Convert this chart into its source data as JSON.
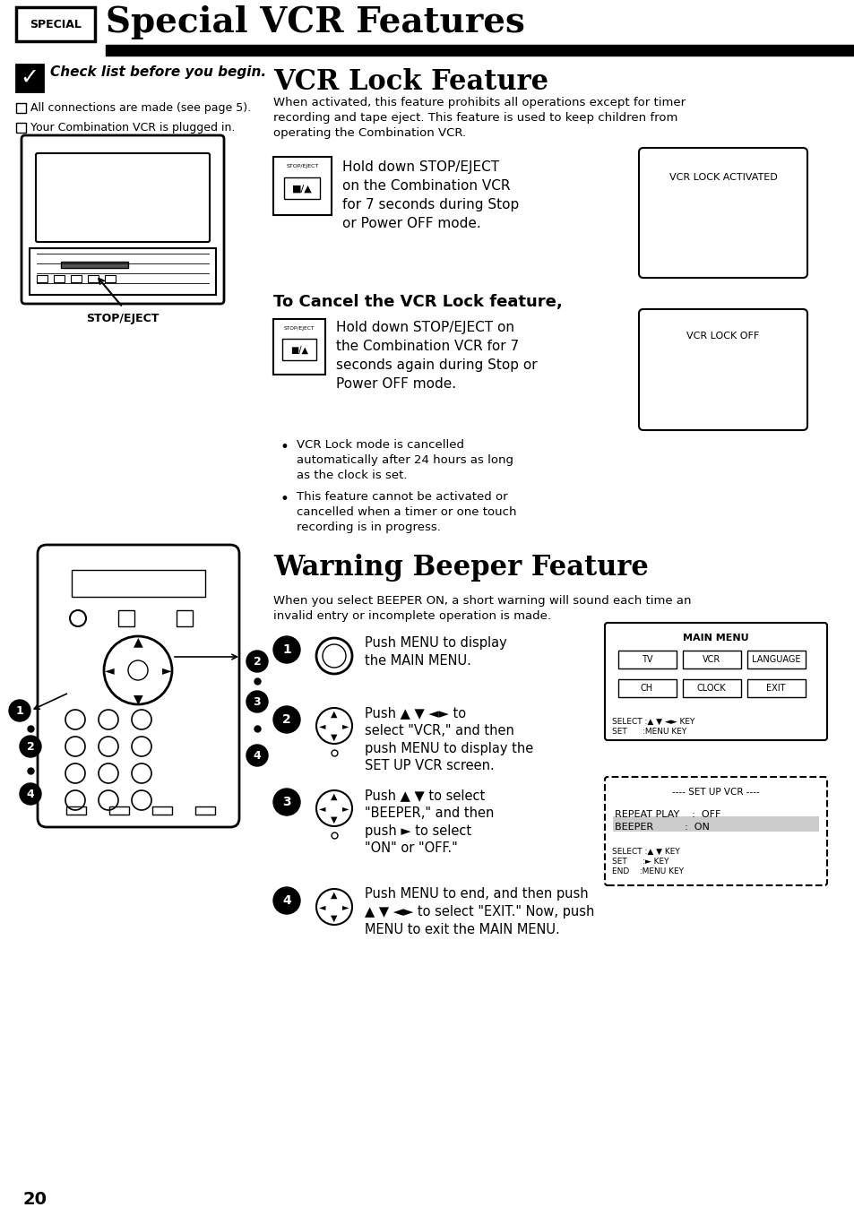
{
  "title": "Special VCR Features",
  "special_label": "SPECIAL",
  "page_number": "20",
  "bg_color": "#ffffff",
  "header_bar_color": "#000000",
  "section1_title": "VCR Lock Feature",
  "section1_intro": "When activated, this feature prohibits all operations except for timer\nrecording and tape eject. This feature is used to keep children from\noperating the Combination VCR.",
  "checklist_title": "Check list before you begin.",
  "checklist_items": [
    "All connections are made (see page 5).",
    "Your Combination VCR is plugged in."
  ],
  "vcr_lock_instruction": "Hold down STOP/EJECT\non the Combination VCR\nfor 7 seconds during Stop\nor Power OFF mode.",
  "vcr_lock_activated": "VCR LOCK ACTIVATED",
  "cancel_title": "To Cancel the VCR Lock feature,",
  "cancel_instruction": "Hold down STOP/EJECT on\nthe Combination VCR for 7\nseconds again during Stop or\nPower OFF mode.",
  "vcr_lock_off": "VCR LOCK OFF",
  "bullet1": "VCR Lock mode is cancelled\nautomatically after 24 hours as long\nas the clock is set.",
  "bullet2": "This feature cannot be activated or\ncancelled when a timer or one touch\nrecording is in progress.",
  "stop_eject_label": "STOP/EJECT",
  "section2_title": "Warning Beeper Feature",
  "section2_intro": "When you select BEEPER ON, a short warning will sound each time an\ninvalid entry or incomplete operation is made.",
  "step1_text": "Push MENU to display\nthe MAIN MENU.",
  "step2_text": "Push ▲ ▼ ◄► to\nselect \"VCR,\" and then\npush MENU to display the\nSET UP VCR screen.",
  "step3_text": "Push ▲ ▼ to select\n\"BEEPER,\" and then\npush ► to select\n\"ON\" or \"OFF.\"",
  "step4_text": "Push MENU to end, and then push\n▲ ▼ ◄► to select \"EXIT.\" Now, push\nMENU to exit the MAIN MENU.",
  "main_menu_label": "MAIN MENU",
  "setup_vcr_label": "---- SET UP VCR ----",
  "repeat_play_label": "REPEAT PLAY    :  OFF",
  "beeper_label": "BEEPER          :  ON",
  "select_key_label1": "SELECT :▲ ▼ KEY",
  "set_key_label1": "SET      :► KEY",
  "end_key_label": "END    :MENU KEY",
  "select_key_label2": "SELECT :▲ ▼ ◄► KEY",
  "set_key_label2": "SET      :MENU KEY",
  "right_side_labels": [
    "2",
    "3",
    "4"
  ],
  "left_side_labels": [
    "1",
    "2",
    "4"
  ]
}
